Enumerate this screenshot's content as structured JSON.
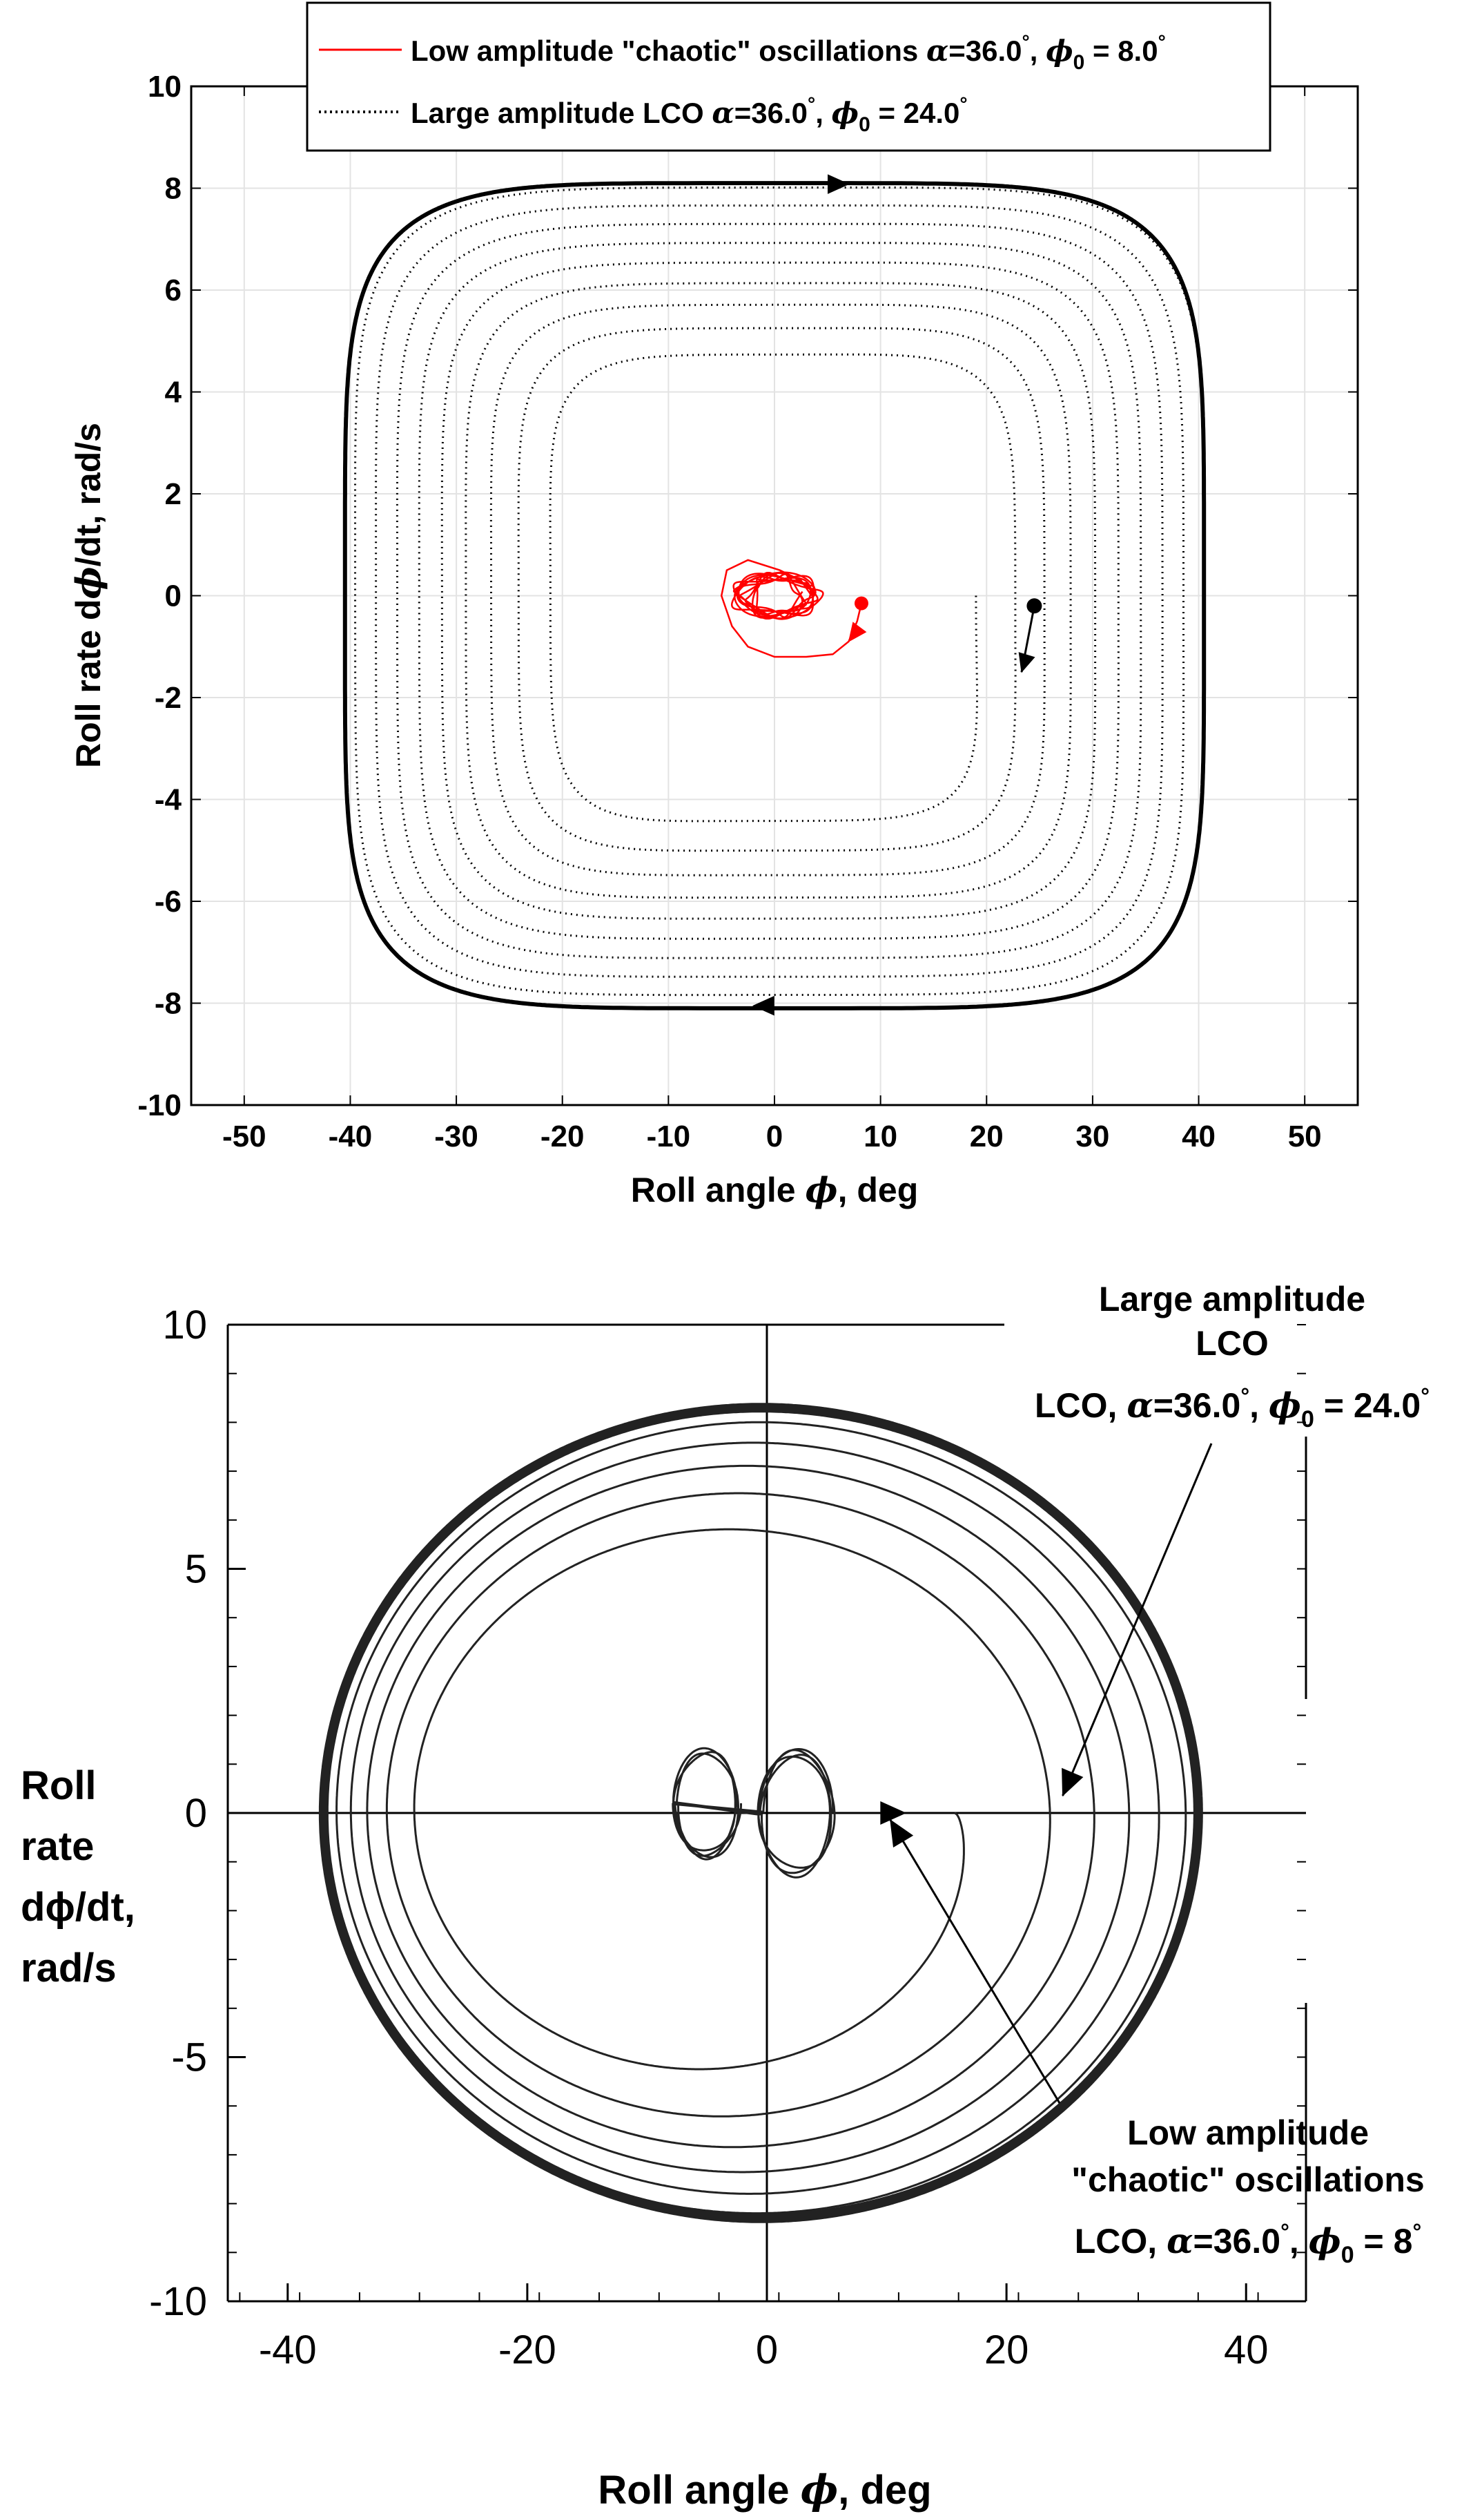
{
  "chart_data": [
    {
      "type": "line",
      "panel": "top",
      "xlabel": {
        "pre": "Roll angle ",
        "sym": "ϕ",
        "post": ", deg"
      },
      "ylabel": {
        "pre": "Roll rate d",
        "sym": "ϕ",
        "post": "/dt, rad/s"
      },
      "xlim": [
        -55,
        55
      ],
      "ylim": [
        -10,
        10
      ],
      "xticks": [
        "-50",
        "-40",
        "-30",
        "-20",
        "-10",
        "0",
        "10",
        "20",
        "30",
        "40",
        "50"
      ],
      "yticks": [
        "-10",
        "-8",
        "-6",
        "-4",
        "-2",
        "0",
        "2",
        "4",
        "6",
        "8",
        "10"
      ],
      "grid": true,
      "legend_position": "top-center",
      "legend": [
        {
          "pre": "Low amplitude \"chaotic\" oscillations ",
          "alpha": "α",
          "mid": "=36.0",
          "deg": "°",
          "sep": ", ",
          "phi": "ϕ",
          "sub": "0",
          "post": " = 8.0",
          "deg2": "°",
          "style": "red-solid"
        },
        {
          "pre": "Large amplitude LCO ",
          "alpha": "α",
          "mid": "=36.0",
          "deg": "°",
          "sep": ", ",
          "phi": "ϕ",
          "sub": "0",
          "post": " = 24.0",
          "deg2": "°",
          "style": "black-dotted"
        }
      ],
      "series": [
        {
          "name": "Large amplitude LCO",
          "color": "#000000",
          "style": "dotted",
          "start": [
            24.5,
            -0.2
          ],
          "limit_cycle_roll_amplitude_deg": 40.5,
          "limit_cycle_rate_amplitude_rad_s": 8.1,
          "inner_min_roll_deg": 19.0,
          "inner_min_rate_rad_s": 4.2
        },
        {
          "name": "Low amplitude chaotic oscillations",
          "color": "#ff0000",
          "style": "solid",
          "start": [
            8.2,
            -0.15
          ],
          "roll_range_deg": [
            -5,
            8
          ],
          "rate_range_rad_s": [
            -1.2,
            0.7
          ]
        }
      ]
    },
    {
      "type": "line",
      "panel": "bottom",
      "xlabel": {
        "pre": "Roll angle ",
        "sym": "ϕ",
        "post": ", deg"
      },
      "ylabel": [
        "Roll",
        "rate",
        "dϕ/dt,",
        "rad/s"
      ],
      "xlim": [
        -45,
        45
      ],
      "ylim": [
        -10,
        10
      ],
      "xticks": [
        "-40",
        "-20",
        "0",
        "20",
        "40"
      ],
      "yticks": [
        "-10",
        "-5",
        "0",
        "5",
        "10"
      ],
      "grid": false,
      "annotations": [
        {
          "lines": [
            "Large amplitude",
            "LCO"
          ],
          "formula": {
            "pre": "LCO, ",
            "alpha": "α",
            "mid": "=36.0",
            "deg": "°",
            "sep": ", ",
            "phi": "ϕ",
            "sub": "0",
            "post": " = 24.0",
            "deg2": "°"
          },
          "points_to": [
            24,
            0
          ]
        },
        {
          "lines": [
            "Low amplitude",
            "\"chaotic\" oscillations"
          ],
          "formula": {
            "pre": "LCO, ",
            "alpha": "α",
            "mid": "=36.0",
            "deg": "°",
            "sep": ", ",
            "phi": "ϕ",
            "sub": "0",
            "post": " = 8",
            "deg2": "°"
          },
          "points_to": [
            8,
            0
          ]
        }
      ],
      "series": [
        {
          "name": "Large amplitude LCO",
          "color": "#222222",
          "style": "solid",
          "start": [
            24,
            0
          ],
          "limit_cycle_roll_range_deg": [
            -37,
            36
          ],
          "limit_cycle_rate_amplitude_rad_s": 8.3
        },
        {
          "name": "Low amplitude chaotic oscillations",
          "color": "#222222",
          "style": "solid",
          "start": [
            8,
            0
          ],
          "left_lobe_center": [
            -5,
            0.2
          ],
          "right_lobe_center": [
            2.5,
            0
          ]
        }
      ]
    }
  ]
}
